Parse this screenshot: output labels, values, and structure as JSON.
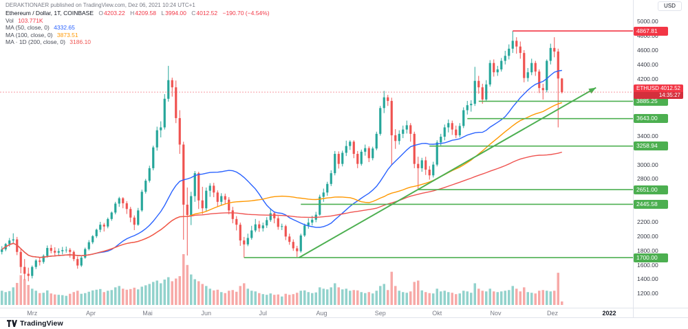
{
  "header": {
    "publisher": "DERAKTIONAER published on TradingView.com, Dez 06, 2021 10:24 UTC+1"
  },
  "price_scale": {
    "currency": "USD",
    "last_badge": {
      "symbol": "ETHUSD",
      "value": "4012.52",
      "countdown": "14:35:27"
    }
  },
  "legend": {
    "symbol": {
      "title": "Ethereum / Dollar, 1T, COINBASE",
      "o_label": "O",
      "open": "4203.22",
      "h_label": "H",
      "high": "4209.58",
      "l_label": "L",
      "low": "3994.00",
      "c_label": "C",
      "close": "4012.52",
      "change": "−190.70 (−4.54%)"
    },
    "vol": {
      "label": "Vol",
      "value": "103.771K"
    },
    "ma50": {
      "label": "MA (50, close, 0)",
      "value": "4332.65"
    },
    "ma100": {
      "label": "MA (100, close, 0)",
      "value": "3873.51"
    },
    "ma200": {
      "label": "MA · 1D (200, close, 0)",
      "value": "3186.10"
    }
  },
  "time_scale": {
    "labels": [
      {
        "label": "Mrz",
        "i": 8
      },
      {
        "label": "Apr",
        "i": 23.5
      },
      {
        "label": "Mai",
        "i": 38.5
      },
      {
        "label": "Jun",
        "i": 54
      },
      {
        "label": "Jul",
        "i": 69
      },
      {
        "label": "Aug",
        "i": 84.5
      },
      {
        "label": "Sep",
        "i": 100
      },
      {
        "label": "Okt",
        "i": 115
      },
      {
        "label": "Nov",
        "i": 130.5
      },
      {
        "label": "Dez",
        "i": 145.5
      },
      {
        "label": "2022",
        "i": 160.5,
        "year": true
      }
    ]
  },
  "footer": {
    "brand": "TradingView"
  },
  "chart_data": {
    "type": "candlestick",
    "title": "Ethereum / Dollar",
    "symbol": "ETHUSD",
    "exchange": "COINBASE",
    "interval": "1T",
    "last_price": 4012.52,
    "axis": {
      "min": 1010,
      "max": 5185,
      "ticks": [
        5000,
        4800,
        4600,
        4400,
        4200,
        3400,
        3000,
        2800,
        2200,
        2000,
        1800,
        1600,
        1400,
        1200
      ]
    },
    "colors": {
      "up": "#26a69a",
      "down": "#ef5350",
      "vol_up": "rgba(38,166,154,0.5)",
      "vol_down": "rgba(239,83,80,0.5)",
      "ma50": "#2962ff",
      "ma100": "#ff9800",
      "ma200": "#ef5350",
      "level_green": "#4caf50",
      "level_red": "#f23645",
      "last": "#f23645",
      "trend": "#4caf50"
    },
    "overlays": [
      {
        "period": 50,
        "key": "ma50",
        "value": 4332.65
      },
      {
        "period": 100,
        "key": "ma100",
        "value": 3873.51
      },
      {
        "period": 200,
        "key": "ma200",
        "value": 3186.1
      }
    ],
    "levels": [
      {
        "price": 4867.81,
        "start": 135,
        "color": "#f23645"
      },
      {
        "price": 3885.25,
        "start": 126,
        "color": "#4caf50"
      },
      {
        "price": 3643.0,
        "start": 123,
        "color": "#4caf50"
      },
      {
        "price": 3258.94,
        "start": 113,
        "color": "#4caf50"
      },
      {
        "price": 2651.0,
        "start": 110,
        "color": "#4caf50"
      },
      {
        "price": 2445.58,
        "start": 79,
        "color": "#4caf50"
      },
      {
        "price": 1700.0,
        "start": 64,
        "color": "#4caf50"
      }
    ],
    "trendline": {
      "from": {
        "i": 78.5,
        "price": 1700
      },
      "to": {
        "i": 157,
        "price": 4075
      },
      "color": "#4caf50"
    },
    "candles_format": [
      "open",
      "high",
      "low",
      "close",
      "volume_k"
    ],
    "candles": [
      [
        1780,
        1860,
        1745,
        1815,
        420
      ],
      [
        1815,
        1905,
        1790,
        1890,
        380
      ],
      [
        1890,
        1975,
        1852,
        1940,
        410
      ],
      [
        1940,
        2040,
        1905,
        1955,
        520
      ],
      [
        1955,
        1990,
        1735,
        1780,
        650
      ],
      [
        1780,
        1815,
        1480,
        1570,
        880
      ],
      [
        1570,
        1680,
        1390,
        1475,
        760
      ],
      [
        1475,
        1560,
        1370,
        1445,
        590
      ],
      [
        1445,
        1590,
        1410,
        1570,
        480
      ],
      [
        1570,
        1680,
        1540,
        1660,
        420
      ],
      [
        1660,
        1705,
        1590,
        1640,
        350
      ],
      [
        1640,
        1745,
        1615,
        1725,
        360
      ],
      [
        1725,
        1870,
        1700,
        1835,
        430
      ],
      [
        1835,
        1880,
        1760,
        1795,
        340
      ],
      [
        1795,
        1845,
        1725,
        1770,
        310
      ],
      [
        1770,
        1830,
        1735,
        1790,
        300
      ],
      [
        1790,
        1850,
        1745,
        1805,
        290
      ],
      [
        1805,
        1855,
        1770,
        1810,
        270
      ],
      [
        1810,
        1835,
        1700,
        1780,
        330
      ],
      [
        1780,
        1800,
        1650,
        1680,
        380
      ],
      [
        1680,
        1715,
        1545,
        1590,
        420
      ],
      [
        1590,
        1720,
        1570,
        1700,
        330
      ],
      [
        1700,
        1840,
        1685,
        1820,
        350
      ],
      [
        1820,
        1945,
        1800,
        1915,
        390
      ],
      [
        1915,
        2015,
        1890,
        2000,
        430
      ],
      [
        2000,
        2105,
        1975,
        2090,
        450
      ],
      [
        2090,
        2200,
        2055,
        2160,
        470
      ],
      [
        2160,
        2185,
        2065,
        2135,
        380
      ],
      [
        2135,
        2260,
        2110,
        2240,
        420
      ],
      [
        2240,
        2345,
        2215,
        2330,
        440
      ],
      [
        2330,
        2480,
        2305,
        2455,
        520
      ],
      [
        2455,
        2550,
        2410,
        2530,
        560
      ],
      [
        2530,
        2545,
        2390,
        2460,
        480
      ],
      [
        2460,
        2490,
        2310,
        2380,
        450
      ],
      [
        2380,
        2410,
        2195,
        2260,
        470
      ],
      [
        2260,
        2290,
        2085,
        2160,
        510
      ],
      [
        2160,
        2395,
        2145,
        2360,
        460
      ],
      [
        2360,
        2650,
        2340,
        2620,
        540
      ],
      [
        2620,
        2800,
        2595,
        2775,
        580
      ],
      [
        2775,
        2985,
        2750,
        2950,
        620
      ],
      [
        2950,
        3265,
        2920,
        3240,
        680
      ],
      [
        3240,
        3530,
        3195,
        3480,
        720
      ],
      [
        3480,
        3605,
        3380,
        3520,
        640
      ],
      [
        3520,
        3985,
        3490,
        3920,
        750
      ],
      [
        3920,
        4380,
        3880,
        4180,
        820
      ],
      [
        4180,
        4215,
        3950,
        4080,
        700
      ],
      [
        4080,
        4175,
        3580,
        3650,
        780
      ],
      [
        3650,
        3760,
        3150,
        3280,
        850
      ],
      [
        3280,
        3320,
        1950,
        2440,
        1500
      ],
      [
        2440,
        2680,
        1730,
        2295,
        1180
      ],
      [
        2295,
        2620,
        2155,
        2560,
        900
      ],
      [
        2560,
        2910,
        2480,
        2880,
        760
      ],
      [
        2880,
        2900,
        2380,
        2500,
        700
      ],
      [
        2500,
        2690,
        2310,
        2390,
        620
      ],
      [
        2390,
        2680,
        2350,
        2635,
        560
      ],
      [
        2635,
        2740,
        2550,
        2705,
        480
      ],
      [
        2705,
        2745,
        2545,
        2610,
        430
      ],
      [
        2610,
        2640,
        2410,
        2480,
        450
      ],
      [
        2480,
        2600,
        2430,
        2560,
        380
      ],
      [
        2560,
        2595,
        2445,
        2510,
        350
      ],
      [
        2510,
        2545,
        2305,
        2360,
        420
      ],
      [
        2360,
        2410,
        2180,
        2240,
        440
      ],
      [
        2240,
        2280,
        2080,
        2160,
        390
      ],
      [
        2160,
        2190,
        1865,
        1940,
        560
      ],
      [
        1940,
        1990,
        1700,
        1885,
        640
      ],
      [
        1885,
        2035,
        1860,
        1975,
        480
      ],
      [
        1975,
        2145,
        1950,
        2080,
        420
      ],
      [
        2080,
        2240,
        2055,
        2165,
        400
      ],
      [
        2165,
        2215,
        2060,
        2110,
        350
      ],
      [
        2110,
        2190,
        2065,
        2150,
        320
      ],
      [
        2150,
        2265,
        2115,
        2225,
        300
      ],
      [
        2225,
        2390,
        2200,
        2320,
        340
      ],
      [
        2320,
        2345,
        2180,
        2250,
        300
      ],
      [
        2250,
        2280,
        2090,
        2130,
        310
      ],
      [
        2130,
        2175,
        2085,
        2140,
        250
      ],
      [
        2140,
        2160,
        1945,
        1995,
        330
      ],
      [
        1995,
        2035,
        1880,
        1920,
        300
      ],
      [
        1920,
        1955,
        1795,
        1830,
        320
      ],
      [
        1830,
        1865,
        1710,
        1790,
        360
      ],
      [
        1790,
        2035,
        1770,
        2010,
        420
      ],
      [
        2010,
        2175,
        1990,
        2150,
        430
      ],
      [
        2150,
        2250,
        2105,
        2190,
        380
      ],
      [
        2190,
        2285,
        2150,
        2230,
        350
      ],
      [
        2230,
        2340,
        2195,
        2300,
        370
      ],
      [
        2300,
        2580,
        2285,
        2550,
        520
      ],
      [
        2550,
        2665,
        2480,
        2610,
        480
      ],
      [
        2610,
        2760,
        2565,
        2730,
        460
      ],
      [
        2730,
        2920,
        2700,
        2880,
        520
      ],
      [
        2880,
        3190,
        2850,
        3150,
        640
      ],
      [
        3150,
        3185,
        2945,
        3010,
        520
      ],
      [
        3010,
        3195,
        2975,
        3165,
        460
      ],
      [
        3165,
        3335,
        3120,
        3260,
        480
      ],
      [
        3260,
        3340,
        3205,
        3320,
        420
      ],
      [
        3320,
        3340,
        3090,
        3150,
        440
      ],
      [
        3150,
        3190,
        2950,
        3010,
        430
      ],
      [
        3010,
        3210,
        2985,
        3180,
        380
      ],
      [
        3180,
        3280,
        3125,
        3230,
        350
      ],
      [
        3230,
        3255,
        3035,
        3090,
        380
      ],
      [
        3090,
        3250,
        3060,
        3225,
        340
      ],
      [
        3225,
        3460,
        3200,
        3430,
        420
      ],
      [
        3430,
        3820,
        3405,
        3790,
        560
      ],
      [
        3790,
        4030,
        3720,
        3940,
        620
      ],
      [
        3940,
        3975,
        3820,
        3890,
        440
      ],
      [
        3890,
        3935,
        3000,
        3410,
        980
      ],
      [
        3410,
        3495,
        3220,
        3330,
        560
      ],
      [
        3330,
        3480,
        3280,
        3430,
        420
      ],
      [
        3430,
        3545,
        3370,
        3490,
        380
      ],
      [
        3490,
        3615,
        3435,
        3550,
        360
      ],
      [
        3550,
        3580,
        3320,
        3430,
        400
      ],
      [
        3430,
        3460,
        2950,
        3010,
        680
      ],
      [
        3010,
        3110,
        2650,
        2950,
        720
      ],
      [
        2950,
        3095,
        2900,
        3060,
        430
      ],
      [
        3060,
        3110,
        2855,
        2930,
        380
      ],
      [
        2930,
        2980,
        2790,
        2850,
        350
      ],
      [
        2850,
        3040,
        2820,
        3000,
        340
      ],
      [
        3000,
        3340,
        2975,
        3310,
        480
      ],
      [
        3310,
        3430,
        3255,
        3390,
        400
      ],
      [
        3390,
        3560,
        3340,
        3520,
        420
      ],
      [
        3520,
        3630,
        3450,
        3580,
        380
      ],
      [
        3580,
        3615,
        3415,
        3490,
        360
      ],
      [
        3490,
        3545,
        3370,
        3410,
        320
      ],
      [
        3410,
        3580,
        3380,
        3540,
        340
      ],
      [
        3540,
        3800,
        3510,
        3760,
        420
      ],
      [
        3760,
        3890,
        3700,
        3830,
        400
      ],
      [
        3830,
        3900,
        3740,
        3850,
        360
      ],
      [
        3850,
        4366,
        3820,
        4170,
        640
      ],
      [
        4170,
        4240,
        3990,
        4080,
        480
      ],
      [
        4080,
        4130,
        3850,
        3910,
        420
      ],
      [
        3910,
        4180,
        3880,
        4120,
        400
      ],
      [
        4120,
        4460,
        4090,
        4420,
        480
      ],
      [
        4420,
        4470,
        4230,
        4290,
        400
      ],
      [
        4290,
        4380,
        4240,
        4330,
        380
      ],
      [
        4330,
        4490,
        4300,
        4450,
        400
      ],
      [
        4450,
        4590,
        4400,
        4520,
        420
      ],
      [
        4520,
        4680,
        4470,
        4620,
        440
      ],
      [
        4620,
        4867,
        4560,
        4730,
        560
      ],
      [
        4730,
        4780,
        4550,
        4650,
        480
      ],
      [
        4650,
        4720,
        4480,
        4560,
        400
      ],
      [
        4560,
        4600,
        4150,
        4210,
        520
      ],
      [
        4210,
        4350,
        4160,
        4290,
        380
      ],
      [
        4290,
        4480,
        4250,
        4420,
        360
      ],
      [
        4420,
        4450,
        4240,
        4300,
        340
      ],
      [
        4300,
        4330,
        4000,
        4070,
        420
      ],
      [
        4070,
        4130,
        3910,
        4040,
        440
      ],
      [
        4040,
        4470,
        4010,
        4450,
        420
      ],
      [
        4450,
        4690,
        4400,
        4630,
        400
      ],
      [
        4630,
        4780,
        4500,
        4580,
        420
      ],
      [
        4580,
        4620,
        3520,
        4203,
        950
      ],
      [
        4203.22,
        4209.58,
        3994.0,
        4012.52,
        104
      ]
    ]
  }
}
